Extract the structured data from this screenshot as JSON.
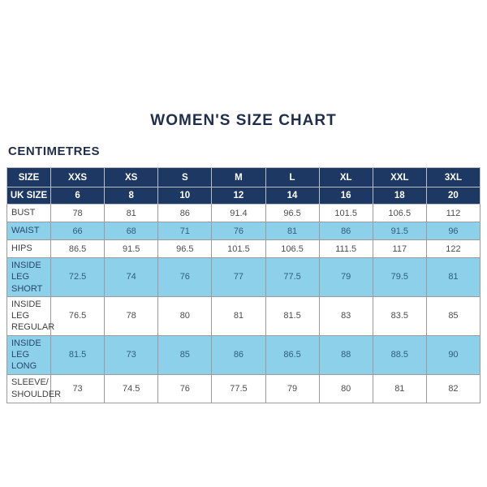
{
  "title": "WOMEN'S SIZE CHART",
  "unit_label": "CENTIMETRES",
  "colors": {
    "header_navy": "#1d3862",
    "row_light_blue": "#8dd0e9",
    "title_text": "#1f2e4d",
    "grid_line": "#9b9b9b",
    "white_row_text": "#4d4d4d",
    "blue_row_text": "#2e5f7d"
  },
  "chart_data": {
    "type": "table",
    "title": "WOMEN'S SIZE CHART",
    "unit": "CENTIMETRES",
    "columns": [
      "SIZE",
      "XXS",
      "XS",
      "S",
      "M",
      "L",
      "XL",
      "XXL",
      "3XL"
    ],
    "uk_size_row": {
      "label": "UK SIZE",
      "values": [
        "6",
        "8",
        "10",
        "12",
        "14",
        "16",
        "18",
        "20"
      ]
    },
    "rows": [
      {
        "label": "BUST",
        "shaded": false,
        "values": [
          "78",
          "81",
          "86",
          "91.4",
          "96.5",
          "101.5",
          "106.5",
          "112"
        ]
      },
      {
        "label": "WAIST",
        "shaded": true,
        "values": [
          "66",
          "68",
          "71",
          "76",
          "81",
          "86",
          "91.5",
          "96"
        ]
      },
      {
        "label": "HIPS",
        "shaded": false,
        "values": [
          "86.5",
          "91.5",
          "96.5",
          "101.5",
          "106.5",
          "111.5",
          "117",
          "122"
        ]
      },
      {
        "label": "INSIDE LEG\nSHORT",
        "shaded": true,
        "values": [
          "72.5",
          "74",
          "76",
          "77",
          "77.5",
          "79",
          "79.5",
          "81"
        ]
      },
      {
        "label": "INSIDE LEG\nREGULAR",
        "shaded": false,
        "values": [
          "76.5",
          "78",
          "80",
          "81",
          "81.5",
          "83",
          "83.5",
          "85"
        ]
      },
      {
        "label": "INSIDE LEG\nLONG",
        "shaded": true,
        "values": [
          "81.5",
          "73",
          "85",
          "86",
          "86.5",
          "88",
          "88.5",
          "90"
        ]
      },
      {
        "label": "SLEEVE/\nSHOULDER",
        "shaded": false,
        "values": [
          "73",
          "74.5",
          "76",
          "77.5",
          "79",
          "80",
          "81",
          "82"
        ]
      }
    ]
  }
}
